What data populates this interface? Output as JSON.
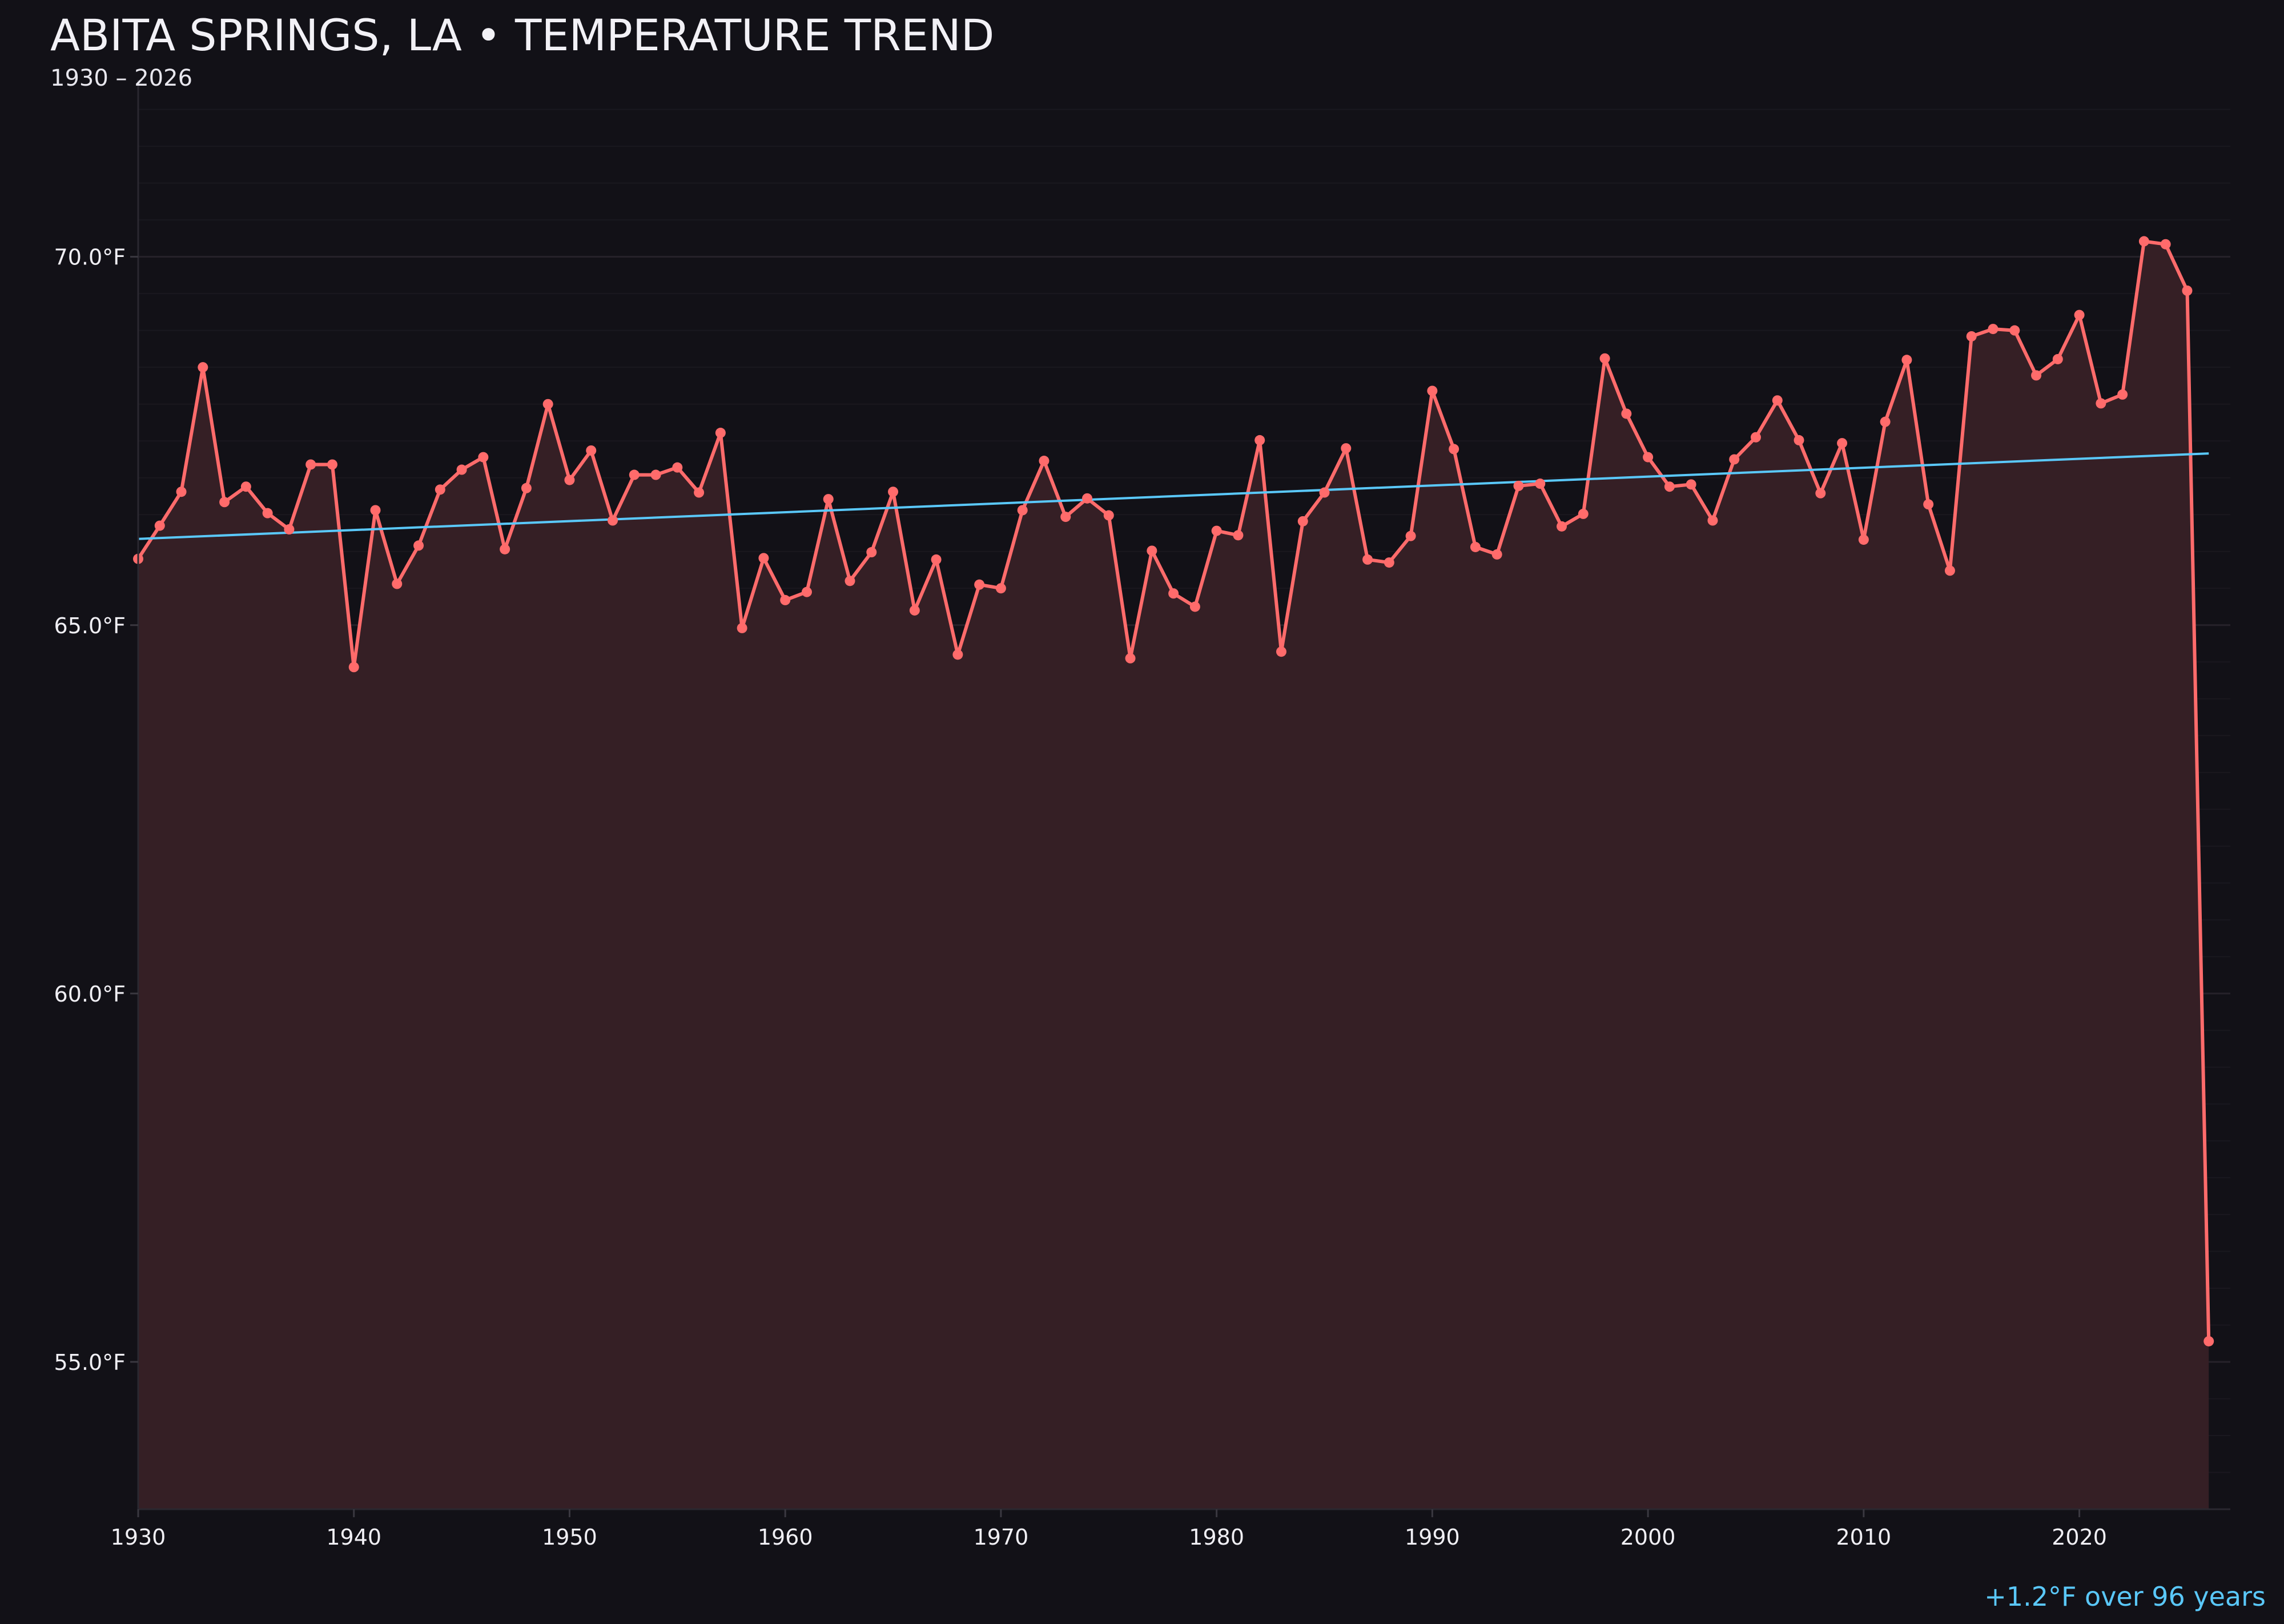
{
  "title": "ABITA SPRINGS, LA • TEMPERATURE TREND",
  "subtitle": "1930 – 2026",
  "annotation": "+1.2°F over 96 years",
  "colors": {
    "background": "#121117",
    "line": "#ff6b6b",
    "fill": "#351f25",
    "trend": "#5ac8fa",
    "grid": "#221f26",
    "text": "#f0eff4"
  },
  "chart_data": {
    "type": "line",
    "title": "ABITA SPRINGS, LA • TEMPERATURE TREND",
    "subtitle": "1930 – 2026",
    "xlabel": "",
    "ylabel": "",
    "xlim": [
      1930,
      2027
    ],
    "ylim": [
      53.0,
      72.4
    ],
    "x_ticks": [
      1930,
      1940,
      1950,
      1960,
      1970,
      1980,
      1990,
      2000,
      2010,
      2020
    ],
    "y_ticks": [
      55,
      60,
      65,
      70
    ],
    "y_tick_labels": [
      "55.0°F",
      "60.0°F",
      "65.0°F",
      "70.0°F"
    ],
    "grid": "horizontal, major every 5°F, minor every 0.5°F",
    "area_fill": true,
    "x": [
      1930,
      1931,
      1932,
      1933,
      1934,
      1935,
      1936,
      1937,
      1938,
      1939,
      1940,
      1941,
      1942,
      1943,
      1944,
      1945,
      1946,
      1947,
      1948,
      1949,
      1950,
      1951,
      1952,
      1953,
      1954,
      1955,
      1956,
      1957,
      1958,
      1959,
      1960,
      1961,
      1962,
      1963,
      1964,
      1965,
      1966,
      1967,
      1968,
      1969,
      1970,
      1971,
      1972,
      1973,
      1974,
      1975,
      1976,
      1977,
      1978,
      1979,
      1980,
      1981,
      1982,
      1983,
      1984,
      1985,
      1986,
      1987,
      1988,
      1989,
      1990,
      1991,
      1992,
      1993,
      1994,
      1995,
      1996,
      1997,
      1998,
      1999,
      2000,
      2001,
      2002,
      2003,
      2004,
      2005,
      2006,
      2007,
      2008,
      2009,
      2010,
      2011,
      2012,
      2013,
      2014,
      2015,
      2016,
      2017,
      2018,
      2019,
      2020,
      2021,
      2022,
      2023,
      2024,
      2025,
      2026
    ],
    "values": [
      65.9,
      66.35,
      66.81,
      68.5,
      66.67,
      66.88,
      66.52,
      66.3,
      67.18,
      67.18,
      64.43,
      66.56,
      65.56,
      66.08,
      66.84,
      67.11,
      67.28,
      66.03,
      66.86,
      68.0,
      66.97,
      67.37,
      66.42,
      67.04,
      67.04,
      67.14,
      66.8,
      67.61,
      64.96,
      65.91,
      65.34,
      65.45,
      66.71,
      65.6,
      65.99,
      66.81,
      65.2,
      65.89,
      64.6,
      65.55,
      65.5,
      66.56,
      67.23,
      66.47,
      66.72,
      66.49,
      64.55,
      66.01,
      65.43,
      65.25,
      66.28,
      66.22,
      67.51,
      64.64,
      66.41,
      66.8,
      67.4,
      65.89,
      65.85,
      66.21,
      68.18,
      67.39,
      66.06,
      65.96,
      66.89,
      66.92,
      66.34,
      66.51,
      68.62,
      67.87,
      67.28,
      66.88,
      66.91,
      66.42,
      67.25,
      67.55,
      68.05,
      67.51,
      66.79,
      67.47,
      66.16,
      67.76,
      68.6,
      66.64,
      65.74,
      68.92,
      69.02,
      69.0,
      68.39,
      68.61,
      69.21,
      68.01,
      68.13,
      70.21,
      70.17,
      69.54,
      55.28
    ],
    "trend": {
      "x": [
        1930,
        2026
      ],
      "values": [
        66.17,
        67.33
      ]
    },
    "annotation": "+1.2°F over 96 years"
  }
}
